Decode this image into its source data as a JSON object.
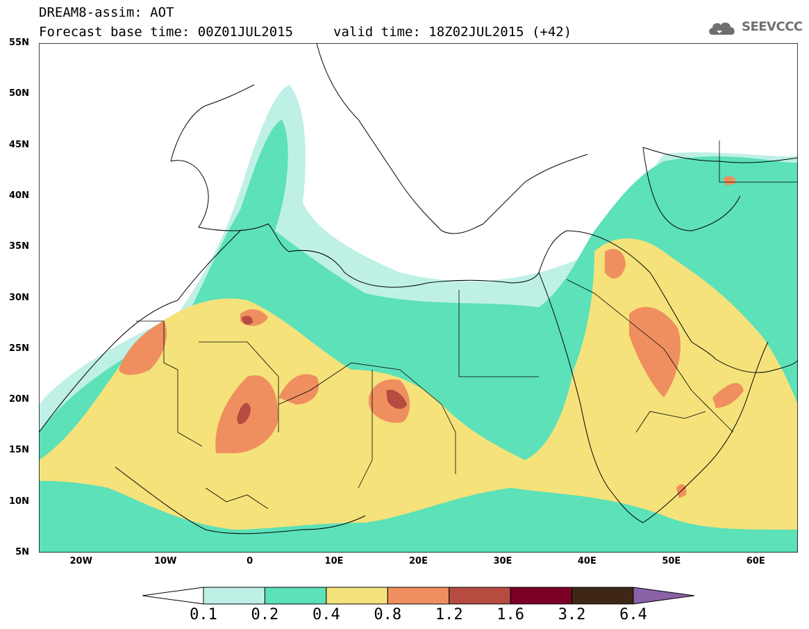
{
  "header": {
    "line1": "DREAM8-assim: AOT",
    "base_time": "Forecast base time: 00Z01JUL2015",
    "valid_time": "valid time: 18Z02JUL2015 (+42)"
  },
  "logo": {
    "text": "SEEVCCC",
    "icon": "cloud-icon"
  },
  "map": {
    "lat_ticks": [
      "55N",
      "50N",
      "45N",
      "40N",
      "35N",
      "30N",
      "25N",
      "20N",
      "15N",
      "10N",
      "5N"
    ],
    "lon_ticks": [
      "20W",
      "10W",
      "0",
      "10E",
      "20E",
      "30E",
      "40E",
      "50E",
      "60E"
    ]
  },
  "colorbar": {
    "labels": [
      "0.1",
      "0.2",
      "0.4",
      "0.8",
      "1.2",
      "1.6",
      "3.2",
      "6.4"
    ],
    "colors": [
      "#ffffff",
      "#bff0e6",
      "#5ce1b9",
      "#f5e27a",
      "#ef8f60",
      "#b64b3f",
      "#7a0026",
      "#3f2716",
      "#8a62a8"
    ]
  }
}
